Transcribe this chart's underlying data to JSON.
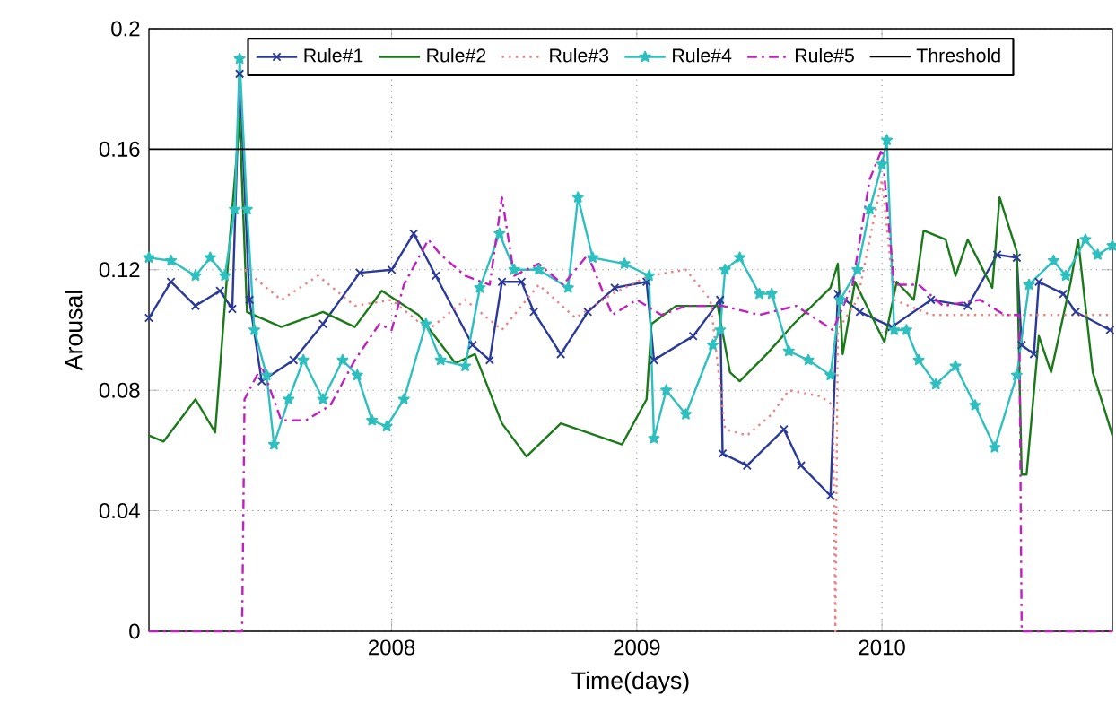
{
  "chart_data": {
    "type": "line",
    "xlabel": "Time(days)",
    "ylabel": "Arousal",
    "xlim": [
      2007.01,
      2010.94
    ],
    "xticks": [
      2008,
      2009,
      2010
    ],
    "ylim": [
      0,
      0.2
    ],
    "yticks": [
      0,
      0.04,
      0.08,
      0.12,
      0.16,
      0.2
    ],
    "grid": true,
    "legend": "top",
    "ref_lines": [
      {
        "axis": "y",
        "value": 0.16,
        "label": "Threshold",
        "color": "#000000"
      }
    ],
    "series": [
      {
        "name": "Rule#1",
        "color": "#2b3a9a",
        "marker": "cross",
        "line_style": "solid",
        "x": [
          2007.01,
          2007.1,
          2007.2,
          2007.3,
          2007.35,
          2007.38,
          2007.42,
          2007.47,
          2007.6,
          2007.72,
          2007.87,
          2008.0,
          2008.09,
          2008.18,
          2008.33,
          2008.4,
          2008.45,
          2008.53,
          2008.58,
          2008.69,
          2008.8,
          2008.91,
          2009.04,
          2009.07,
          2009.23,
          2009.34,
          2009.35,
          2009.45,
          2009.6,
          2009.67,
          2009.79,
          2009.82,
          2009.91,
          2010.04,
          2010.2,
          2010.35,
          2010.47,
          2010.55,
          2010.57,
          2010.62,
          2010.64,
          2010.74,
          2010.79,
          2010.93
        ],
        "values": [
          0.104,
          0.116,
          0.108,
          0.113,
          0.107,
          0.185,
          0.11,
          0.083,
          0.09,
          0.102,
          0.119,
          0.12,
          0.132,
          0.118,
          0.095,
          0.09,
          0.116,
          0.116,
          0.106,
          0.092,
          0.106,
          0.114,
          0.116,
          0.09,
          0.098,
          0.11,
          0.059,
          0.055,
          0.067,
          0.055,
          0.045,
          0.112,
          0.106,
          0.101,
          0.11,
          0.108,
          0.125,
          0.124,
          0.095,
          0.092,
          0.116,
          0.112,
          0.106,
          0.1
        ]
      },
      {
        "name": "Rule#2",
        "color": "#1a7a1a",
        "marker": "none",
        "line_style": "solid",
        "x": [
          2007.01,
          2007.07,
          2007.2,
          2007.28,
          2007.34,
          2007.38,
          2007.41,
          2007.55,
          2007.72,
          2007.85,
          2007.96,
          2008.11,
          2008.26,
          2008.34,
          2008.45,
          2008.55,
          2008.69,
          2008.94,
          2009.04,
          2009.06,
          2009.16,
          2009.33,
          2009.38,
          2009.42,
          2009.53,
          2009.64,
          2009.79,
          2009.82,
          2009.84,
          2009.89,
          2010.01,
          2010.06,
          2010.13,
          2010.17,
          2010.26,
          2010.3,
          2010.35,
          2010.45,
          2010.48,
          2010.55,
          2010.57,
          2010.59,
          2010.64,
          2010.69,
          2010.77,
          2010.8,
          2010.86,
          2010.91,
          2010.94
        ],
        "values": [
          0.065,
          0.063,
          0.077,
          0.066,
          0.13,
          0.17,
          0.106,
          0.101,
          0.106,
          0.101,
          0.113,
          0.105,
          0.089,
          0.092,
          0.069,
          0.058,
          0.069,
          0.062,
          0.077,
          0.102,
          0.108,
          0.108,
          0.086,
          0.083,
          0.092,
          0.102,
          0.114,
          0.122,
          0.092,
          0.116,
          0.096,
          0.116,
          0.11,
          0.133,
          0.13,
          0.118,
          0.13,
          0.114,
          0.144,
          0.126,
          0.052,
          0.052,
          0.098,
          0.086,
          0.116,
          0.13,
          0.086,
          0.073,
          0.065
        ]
      },
      {
        "name": "Rule#3",
        "color": "#f08080",
        "marker": "none",
        "line_style": "dotted",
        "x": [
          2007.4,
          2007.55,
          2007.7,
          2007.85,
          2008.0,
          2008.15,
          2008.3,
          2008.45,
          2008.6,
          2008.75,
          2008.9,
          2009.05,
          2009.2,
          2009.3,
          2009.36,
          2009.45,
          2009.55,
          2009.62,
          2009.75,
          2009.8,
          2009.81,
          2009.82,
          2009.9,
          2010.0,
          2010.05,
          2010.2,
          2010.4,
          2010.6,
          2010.93
        ],
        "values": [
          0.12,
          0.11,
          0.118,
          0.108,
          0.11,
          0.1,
          0.11,
          0.1,
          0.115,
          0.104,
          0.112,
          0.118,
          0.12,
          0.11,
          0.067,
          0.065,
          0.072,
          0.08,
          0.078,
          0.075,
          0,
          0.1,
          0.11,
          0.15,
          0.11,
          0.105,
          0.105,
          0.105,
          0.105
        ]
      },
      {
        "name": "Rule#4",
        "color": "#2ebfbf",
        "marker": "star",
        "line_style": "solid",
        "x": [
          2007.01,
          2007.1,
          2007.2,
          2007.26,
          2007.32,
          2007.36,
          2007.38,
          2007.41,
          2007.44,
          2007.49,
          2007.52,
          2007.58,
          2007.64,
          2007.72,
          2007.8,
          2007.86,
          2007.92,
          2007.98,
          2008.05,
          2008.14,
          2008.2,
          2008.3,
          2008.36,
          2008.44,
          2008.5,
          2008.6,
          2008.72,
          2008.76,
          2008.82,
          2008.95,
          2009.05,
          2009.07,
          2009.12,
          2009.2,
          2009.31,
          2009.34,
          2009.36,
          2009.42,
          2009.5,
          2009.55,
          2009.62,
          2009.7,
          2009.79,
          2009.83,
          2009.9,
          2009.95,
          2010.0,
          2010.02,
          2010.05,
          2010.1,
          2010.15,
          2010.22,
          2010.3,
          2010.38,
          2010.46,
          2010.55,
          2010.6,
          2010.7,
          2010.75,
          2010.83,
          2010.88,
          2010.94
        ],
        "values": [
          0.124,
          0.123,
          0.118,
          0.124,
          0.118,
          0.14,
          0.19,
          0.14,
          0.1,
          0.085,
          0.062,
          0.077,
          0.09,
          0.077,
          0.09,
          0.085,
          0.07,
          0.068,
          0.077,
          0.102,
          0.09,
          0.088,
          0.114,
          0.132,
          0.12,
          0.12,
          0.114,
          0.144,
          0.124,
          0.122,
          0.118,
          0.064,
          0.08,
          0.072,
          0.095,
          0.1,
          0.12,
          0.124,
          0.112,
          0.112,
          0.093,
          0.09,
          0.085,
          0.11,
          0.12,
          0.14,
          0.155,
          0.163,
          0.1,
          0.1,
          0.09,
          0.082,
          0.088,
          0.075,
          0.061,
          0.085,
          0.115,
          0.123,
          0.118,
          0.13,
          0.125,
          0.128
        ]
      },
      {
        "name": "Rule#5",
        "color": "#c020c0",
        "marker": "none",
        "line_style": "dashed",
        "x": [
          2007.01,
          2007.39,
          2007.4,
          2007.47,
          2007.55,
          2007.65,
          2007.75,
          2007.85,
          2007.95,
          2008.0,
          2008.05,
          2008.15,
          2008.2,
          2008.3,
          2008.4,
          2008.45,
          2008.5,
          2008.6,
          2008.7,
          2008.8,
          2008.9,
          2009.0,
          2009.1,
          2009.2,
          2009.35,
          2009.5,
          2009.65,
          2009.8,
          2009.88,
          2009.95,
          2010.0,
          2010.05,
          2010.15,
          2010.25,
          2010.4,
          2010.5,
          2010.56,
          2010.57,
          2010.94
        ],
        "values": [
          0,
          0,
          0.077,
          0.088,
          0.07,
          0.07,
          0.075,
          0.09,
          0.102,
          0.1,
          0.115,
          0.13,
          0.125,
          0.118,
          0.115,
          0.144,
          0.118,
          0.122,
          0.115,
          0.125,
          0.105,
          0.11,
          0.105,
          0.108,
          0.108,
          0.105,
          0.108,
          0.1,
          0.115,
          0.15,
          0.16,
          0.115,
          0.115,
          0.108,
          0.11,
          0.105,
          0.105,
          0,
          0
        ]
      }
    ]
  }
}
